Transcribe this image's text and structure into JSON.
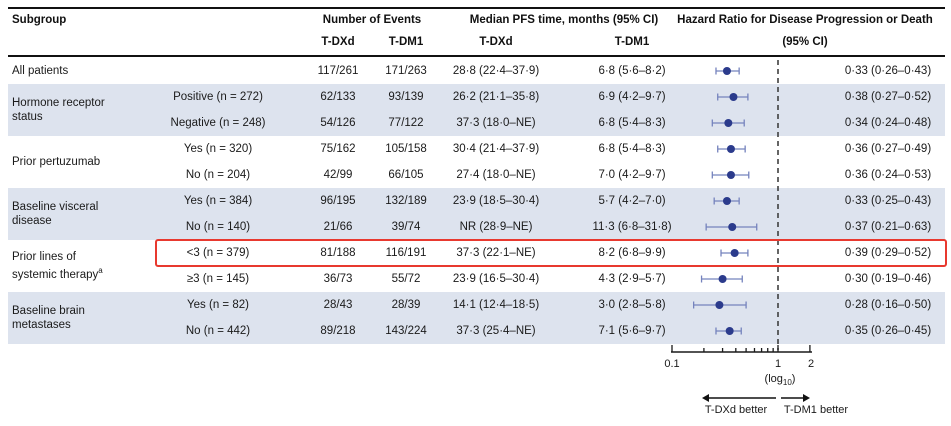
{
  "colors": {
    "dot": "#2b3b8c",
    "ci_line": "#7583bd",
    "row_shade": "#dde3ee",
    "highlight_box": "#e8392f",
    "rule": "#111111",
    "dashed_reference": "#3f3f3f",
    "axis": "#1a1a1a"
  },
  "header": {
    "subgroup": "Subgroup",
    "events_label": "Number of Events",
    "events_col1": "T-DXd",
    "events_col2": "T-DM1",
    "pfs_label": "Median PFS time, months (95% CI)",
    "pfs_col1": "T-DXd",
    "pfs_col2": "T-DM1",
    "hr_label": "Hazard Ratio for Disease Progression or Death",
    "hr_sub": "(95% CI)"
  },
  "groups": [
    {
      "lines": [
        "All patients"
      ],
      "rows": 1,
      "shaded": false
    },
    {
      "lines": [
        "Hormone receptor",
        "status"
      ],
      "rows": 2,
      "shaded": true
    },
    {
      "lines": [
        "Prior pertuzumab"
      ],
      "rows": 2,
      "shaded": false
    },
    {
      "lines": [
        "Baseline visceral",
        "disease"
      ],
      "rows": 2,
      "shaded": true
    },
    {
      "lines": [
        "Prior lines of",
        "systemic therapy"
      ],
      "sup": "a",
      "rows": 2,
      "shaded": false
    },
    {
      "lines": [
        "Baseline brain",
        "metastases"
      ],
      "rows": 2,
      "shaded": true
    }
  ],
  "rows": [
    {
      "subcat": "",
      "ev1": "117/261",
      "ev2": "171/263",
      "pfs1": "28·8 (22·4–37·9)",
      "pfs2": "6·8 (5·6–8·2)",
      "hr_text": "0·33 (0·26–0·43)"
    },
    {
      "subcat": "Positive (n = 272)",
      "ev1": "62/133",
      "ev2": "93/139",
      "pfs1": "26·2 (21·1–35·8)",
      "pfs2": "6·9 (4·2–9·7)",
      "hr_text": "0·38 (0·27–0·52)"
    },
    {
      "subcat": "Negative (n = 248)",
      "ev1": "54/126",
      "ev2": "77/122",
      "pfs1": "37·3 (18·0–NE)",
      "pfs2": "6·8 (5·4–8·3)",
      "hr_text": "0·34 (0·24–0·48)"
    },
    {
      "subcat": "Yes (n = 320)",
      "ev1": "75/162",
      "ev2": "105/158",
      "pfs1": "30·4 (21·4–37·9)",
      "pfs2": "6·8 (5·4–8·3)",
      "hr_text": "0·36 (0·27–0·49)"
    },
    {
      "subcat": "No (n = 204)",
      "ev1": "42/99",
      "ev2": "66/105",
      "pfs1": "27·4 (18·0–NE)",
      "pfs2": "7·0 (4·2–9·7)",
      "hr_text": "0·36 (0·24–0·53)"
    },
    {
      "subcat": "Yes (n = 384)",
      "ev1": "96/195",
      "ev2": "132/189",
      "pfs1": "23·9 (18·5–30·4)",
      "pfs2": "5·7 (4·2–7·0)",
      "hr_text": "0·33 (0·25–0·43)"
    },
    {
      "subcat": "No (n = 140)",
      "ev1": "21/66",
      "ev2": "39/74",
      "pfs1": "NR (28·9–NE)",
      "pfs2": "11·3 (6·8–31·8)",
      "hr_text": "0·37 (0·21–0·63)"
    },
    {
      "subcat": "<3 (n = 379)",
      "ev1": "81/188",
      "ev2": "116/191",
      "pfs1": "37·3 (22·1–NE)",
      "pfs2": "8·2 (6·8–9·9)",
      "hr_text": "0·39 (0·29–0·52)",
      "highlight": true
    },
    {
      "subcat": "≥3 (n = 145)",
      "ev1": "36/73",
      "ev2": "55/72",
      "pfs1": "23·9 (16·5–30·4)",
      "pfs2": "4·3 (2·9–5·7)",
      "hr_text": "0·30 (0·19–0·46)"
    },
    {
      "subcat": "Yes (n = 82)",
      "ev1": "28/43",
      "ev2": "28/39",
      "pfs1": "14·1 (12·4–18·5)",
      "pfs2": "3·0 (2·8–5·8)",
      "hr_text": "0·28 (0·16–0·50)"
    },
    {
      "subcat": "No (n = 442)",
      "ev1": "89/218",
      "ev2": "143/224",
      "pfs1": "37·3 (25·4–NE)",
      "pfs2": "7·1 (5·6–9·7)",
      "hr_text": "0·35 (0·26–0·45)"
    }
  ],
  "axis": {
    "tick_low": "0.1",
    "tick_mid": "1",
    "tick_high": "2",
    "scale_prefix": "(log",
    "scale_sub": "10",
    "scale_suffix": ")",
    "left_label": "T-DXd better",
    "right_label": "T-DM1 better"
  },
  "chart_data": {
    "type": "scatter",
    "subtype": "forest-plot",
    "title": "Hazard Ratio for Disease Progression or Death (95% CI)",
    "x_axis": {
      "scale": "log10",
      "range": [
        0.1,
        2
      ],
      "labeled_ticks": [
        0.1,
        1,
        2
      ],
      "minor_ticks": [
        0.2,
        0.3,
        0.4,
        0.5,
        0.6,
        0.7,
        0.8,
        0.9
      ],
      "reference_line": 1
    },
    "legend": {
      "left_direction": "T-DXd better",
      "right_direction": "T-DM1 better"
    },
    "points": [
      {
        "label": "All patients",
        "hr": 0.33,
        "lo": 0.26,
        "hi": 0.43
      },
      {
        "label": "Hormone receptor status: Positive (n = 272)",
        "hr": 0.38,
        "lo": 0.27,
        "hi": 0.52
      },
      {
        "label": "Hormone receptor status: Negative (n = 248)",
        "hr": 0.34,
        "lo": 0.24,
        "hi": 0.48
      },
      {
        "label": "Prior pertuzumab: Yes (n = 320)",
        "hr": 0.36,
        "lo": 0.27,
        "hi": 0.49
      },
      {
        "label": "Prior pertuzumab: No (n = 204)",
        "hr": 0.36,
        "lo": 0.24,
        "hi": 0.53
      },
      {
        "label": "Baseline visceral disease: Yes (n = 384)",
        "hr": 0.33,
        "lo": 0.25,
        "hi": 0.43
      },
      {
        "label": "Baseline visceral disease: No (n = 140)",
        "hr": 0.37,
        "lo": 0.21,
        "hi": 0.63
      },
      {
        "label": "Prior lines of systemic therapy: <3 (n = 379)",
        "hr": 0.39,
        "lo": 0.29,
        "hi": 0.52
      },
      {
        "label": "Prior lines of systemic therapy: ≥3 (n = 145)",
        "hr": 0.3,
        "lo": 0.19,
        "hi": 0.46
      },
      {
        "label": "Baseline brain metastases: Yes (n = 82)",
        "hr": 0.28,
        "lo": 0.16,
        "hi": 0.5
      },
      {
        "label": "Baseline brain metastases: No (n = 442)",
        "hr": 0.35,
        "lo": 0.26,
        "hi": 0.45
      }
    ]
  }
}
